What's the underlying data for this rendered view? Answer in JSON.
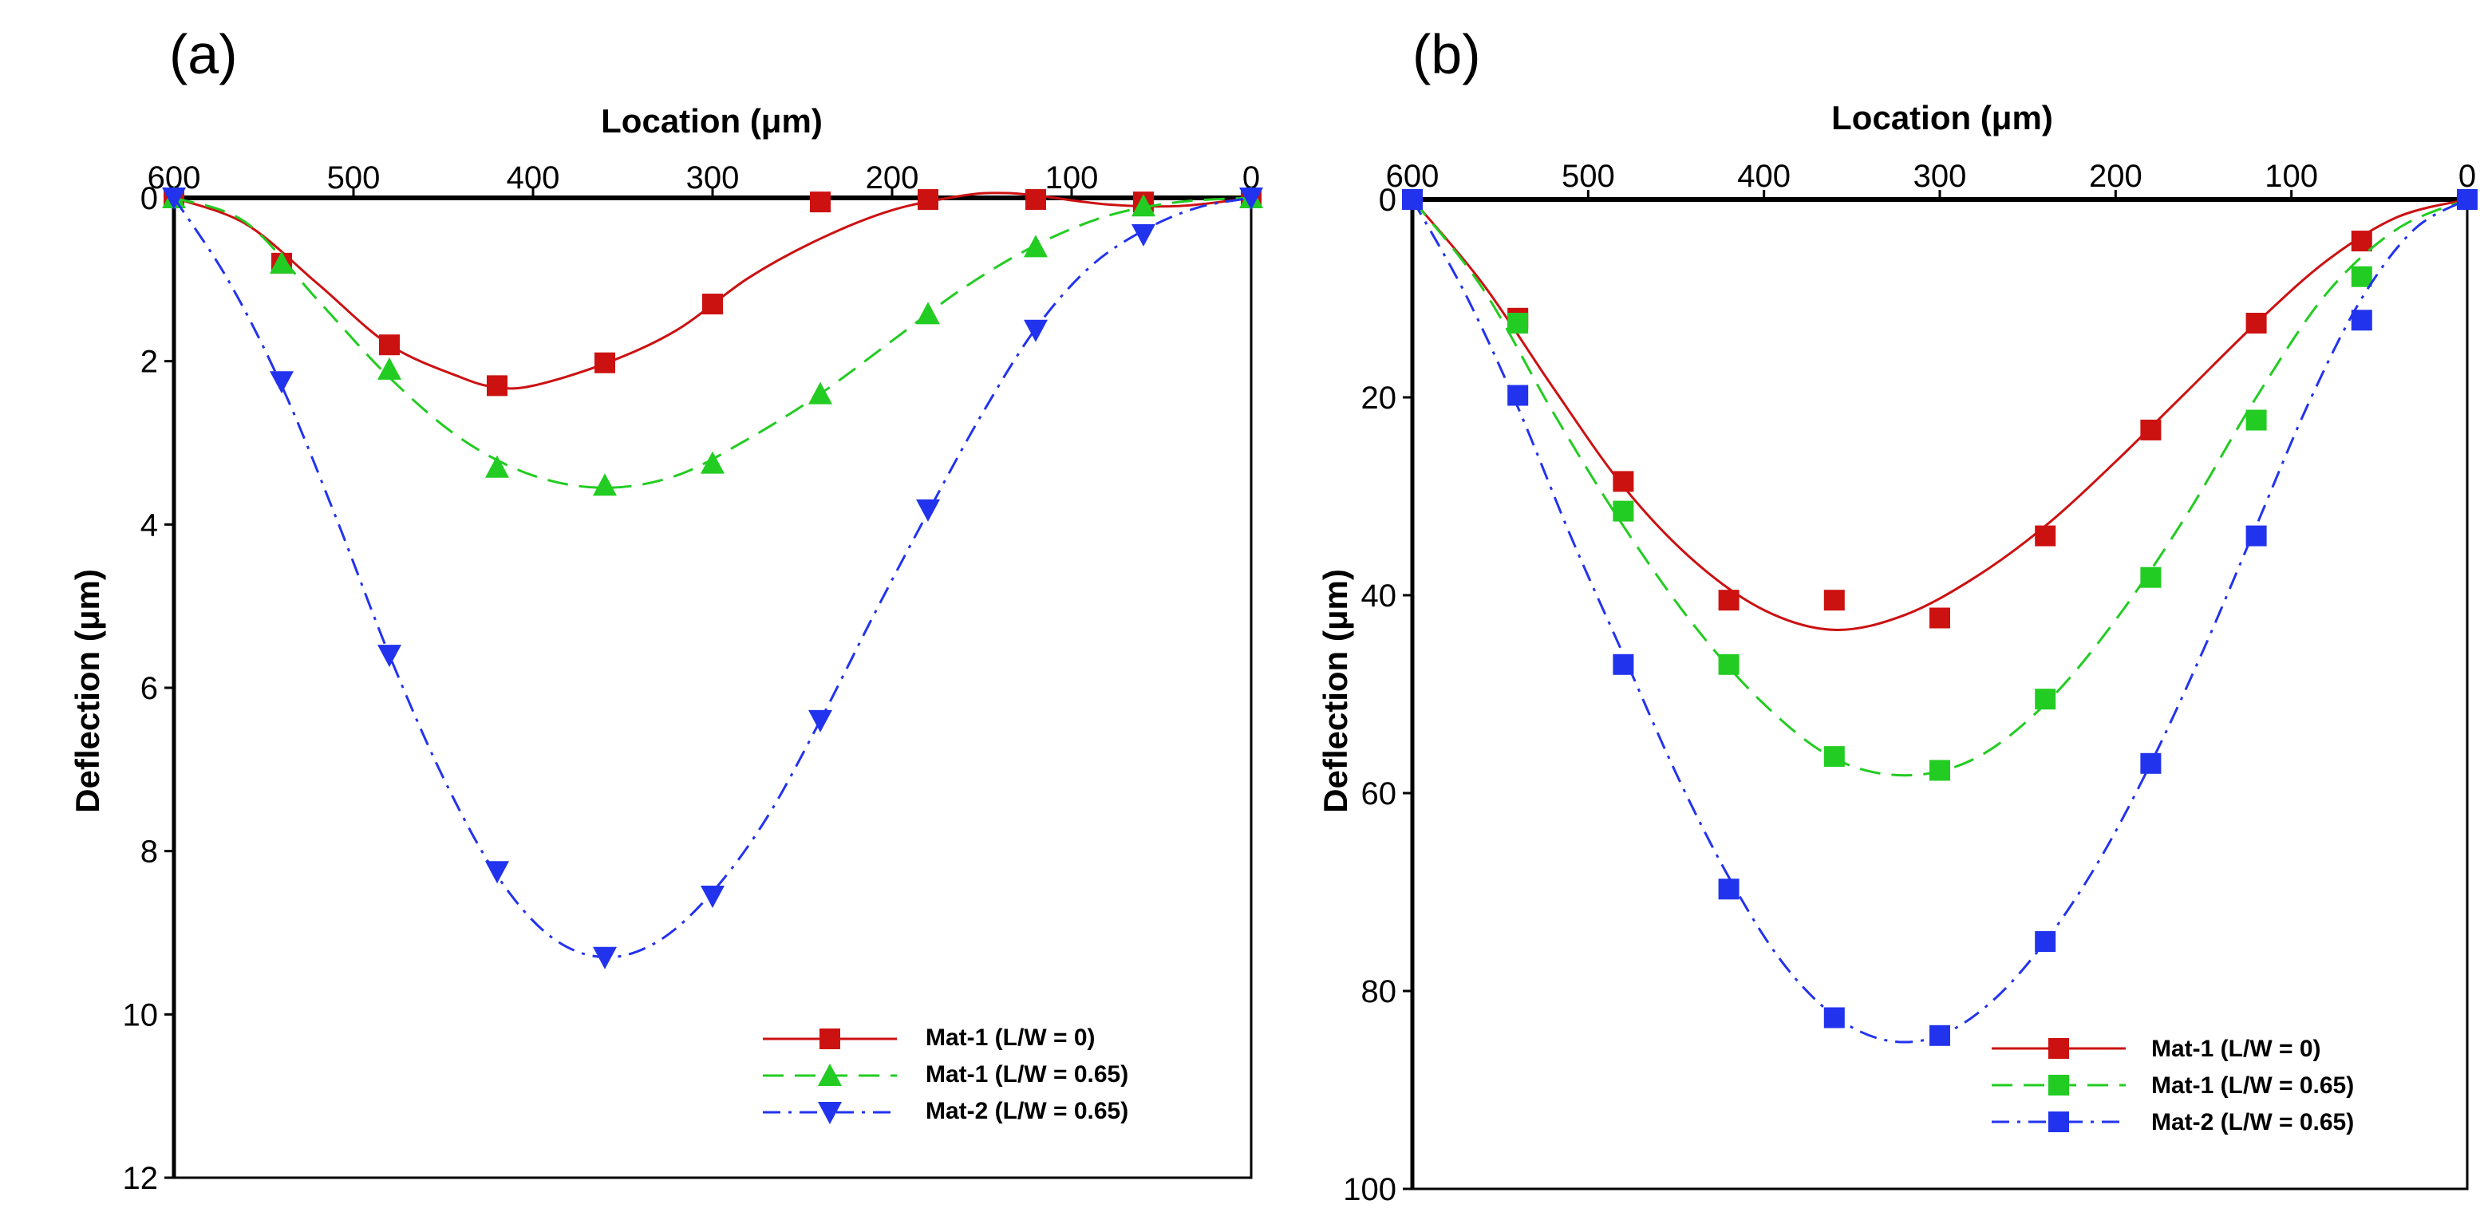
{
  "colors": {
    "red": "#cc1111",
    "green": "#22cc22",
    "blue": "#2233ee"
  },
  "chart_data": [
    {
      "type": "line",
      "panel_label": "(a)",
      "xlabel": "Location (μm)",
      "ylabel": "Deflection (μm)",
      "xlim": [
        600,
        0
      ],
      "ylim": [
        0,
        12
      ],
      "x_ticks": [
        600,
        500,
        400,
        300,
        200,
        100,
        0
      ],
      "y_ticks": [
        0,
        2,
        4,
        6,
        8,
        10,
        12
      ],
      "x_tick_labels": [
        "600",
        "500",
        "400",
        "300",
        "200",
        "100",
        "0"
      ],
      "y_tick_labels": [
        "0",
        "2",
        "4",
        "6",
        "8",
        "10",
        "12"
      ],
      "legend_position": "bottom-right",
      "series": [
        {
          "name": "Mat-1 (L/W = 0)",
          "color": "red",
          "marker": "square",
          "line": "solid",
          "points_x": [
            600,
            540,
            480,
            420,
            360,
            300,
            240,
            180,
            120,
            60,
            0
          ],
          "points_y": [
            0,
            0.8,
            1.8,
            2.3,
            2.02,
            1.3,
            0.05,
            0.02,
            0.02,
            0.05,
            0
          ],
          "curve_x": [
            600,
            560,
            520,
            480,
            440,
            420,
            400,
            360,
            320,
            280,
            240,
            200,
            160,
            140,
            120,
            80,
            40,
            0
          ],
          "curve_y": [
            0,
            0.32,
            1.05,
            1.8,
            2.2,
            2.32,
            2.3,
            2.03,
            1.62,
            0.98,
            0.5,
            0.15,
            -0.03,
            -0.06,
            -0.03,
            0.08,
            0.1,
            0
          ]
        },
        {
          "name": "Mat-1 (L/W = 0.65)",
          "color": "green",
          "marker": "triangle-up",
          "line": "dashed",
          "points_x": [
            600,
            540,
            480,
            420,
            360,
            300,
            240,
            180,
            120,
            60,
            0
          ],
          "points_y": [
            0,
            0.8,
            2.1,
            3.3,
            3.52,
            3.25,
            2.4,
            1.42,
            0.6,
            0.1,
            0
          ],
          "curve_x": [
            600,
            560,
            520,
            480,
            440,
            400,
            360,
            320,
            280,
            240,
            200,
            160,
            120,
            80,
            40,
            0
          ],
          "curve_y": [
            0,
            0.3,
            1.25,
            2.2,
            2.95,
            3.4,
            3.55,
            3.4,
            2.95,
            2.4,
            1.75,
            1.1,
            0.58,
            0.22,
            0.05,
            0
          ]
        },
        {
          "name": "Mat-2 (L/W = 0.65)",
          "color": "blue",
          "marker": "triangle-down",
          "line": "dashdot",
          "points_x": [
            600,
            540,
            480,
            420,
            360,
            300,
            240,
            180,
            120,
            60,
            0
          ],
          "points_y": [
            0,
            2.25,
            5.6,
            8.25,
            9.3,
            8.55,
            6.4,
            3.82,
            1.62,
            0.45,
            0
          ],
          "curve_x": [
            600,
            570,
            540,
            510,
            480,
            450,
            420,
            390,
            360,
            330,
            300,
            270,
            240,
            210,
            180,
            150,
            120,
            90,
            60,
            30,
            0
          ],
          "curve_y": [
            0,
            1.0,
            2.3,
            3.9,
            5.6,
            7.1,
            8.3,
            9.05,
            9.3,
            9.1,
            8.5,
            7.6,
            6.4,
            5.1,
            3.85,
            2.65,
            1.6,
            0.85,
            0.4,
            0.12,
            0
          ]
        }
      ]
    },
    {
      "type": "line",
      "panel_label": "(b)",
      "xlabel": "Location (μm)",
      "ylabel": "Deflection (μm)",
      "xlim": [
        600,
        0
      ],
      "ylim": [
        0,
        100
      ],
      "x_ticks": [
        600,
        500,
        400,
        300,
        200,
        100,
        0
      ],
      "y_ticks": [
        0,
        20,
        40,
        60,
        80,
        100
      ],
      "x_tick_labels": [
        "600",
        "500",
        "400",
        "300",
        "200",
        "100",
        "0"
      ],
      "y_tick_labels": [
        "0",
        "20",
        "40",
        "60",
        "80",
        "100"
      ],
      "legend_position": "bottom-right",
      "series": [
        {
          "name": "Mat-1 (L/W = 0)",
          "color": "red",
          "marker": "square",
          "line": "solid",
          "points_x": [
            600,
            540,
            480,
            420,
            360,
            300,
            240,
            180,
            120,
            60,
            0
          ],
          "points_y": [
            0,
            12,
            28.5,
            40.5,
            40.5,
            42.3,
            34,
            23.3,
            12.5,
            4.2,
            0
          ],
          "curve_x": [
            600,
            560,
            520,
            480,
            440,
            400,
            360,
            320,
            280,
            240,
            200,
            160,
            120,
            80,
            40,
            0
          ],
          "curve_y": [
            0,
            8.5,
            19,
            29,
            36.5,
            41.5,
            43.5,
            42,
            38.2,
            33,
            26.5,
            19.5,
            12.5,
            6.2,
            1.8,
            0
          ]
        },
        {
          "name": "Mat-1 (L/W = 0.65)",
          "color": "green",
          "marker": "square",
          "line": "dashed",
          "points_x": [
            600,
            540,
            480,
            420,
            360,
            300,
            240,
            180,
            120,
            60,
            0
          ],
          "points_y": [
            0,
            12.5,
            31.5,
            47,
            56.3,
            57.7,
            50.5,
            38.2,
            22.3,
            7.8,
            0
          ],
          "curve_x": [
            600,
            560,
            520,
            480,
            440,
            400,
            360,
            320,
            280,
            240,
            200,
            160,
            120,
            80,
            40,
            0
          ],
          "curve_y": [
            0,
            9,
            21.5,
            33,
            43,
            51,
            56.5,
            58.2,
            56.5,
            51,
            42.5,
            32,
            20,
            9.5,
            3,
            0
          ]
        },
        {
          "name": "Mat-2 (L/W = 0.65)",
          "color": "blue",
          "marker": "square",
          "line": "dashdot",
          "points_x": [
            600,
            540,
            480,
            420,
            360,
            300,
            240,
            180,
            120,
            60,
            0
          ],
          "points_y": [
            0,
            19.8,
            47,
            69.7,
            82.7,
            84.5,
            75,
            57,
            34,
            12.2,
            0
          ],
          "curve_x": [
            600,
            570,
            540,
            510,
            480,
            450,
            420,
            390,
            360,
            330,
            300,
            270,
            240,
            210,
            180,
            150,
            120,
            90,
            60,
            30,
            0
          ],
          "curve_y": [
            0,
            9.5,
            21,
            34,
            46,
            58,
            68.5,
            77,
            82.5,
            85,
            84.5,
            81,
            75,
            67,
            57,
            45.5,
            33,
            20.5,
            10,
            3,
            0
          ]
        }
      ]
    }
  ]
}
